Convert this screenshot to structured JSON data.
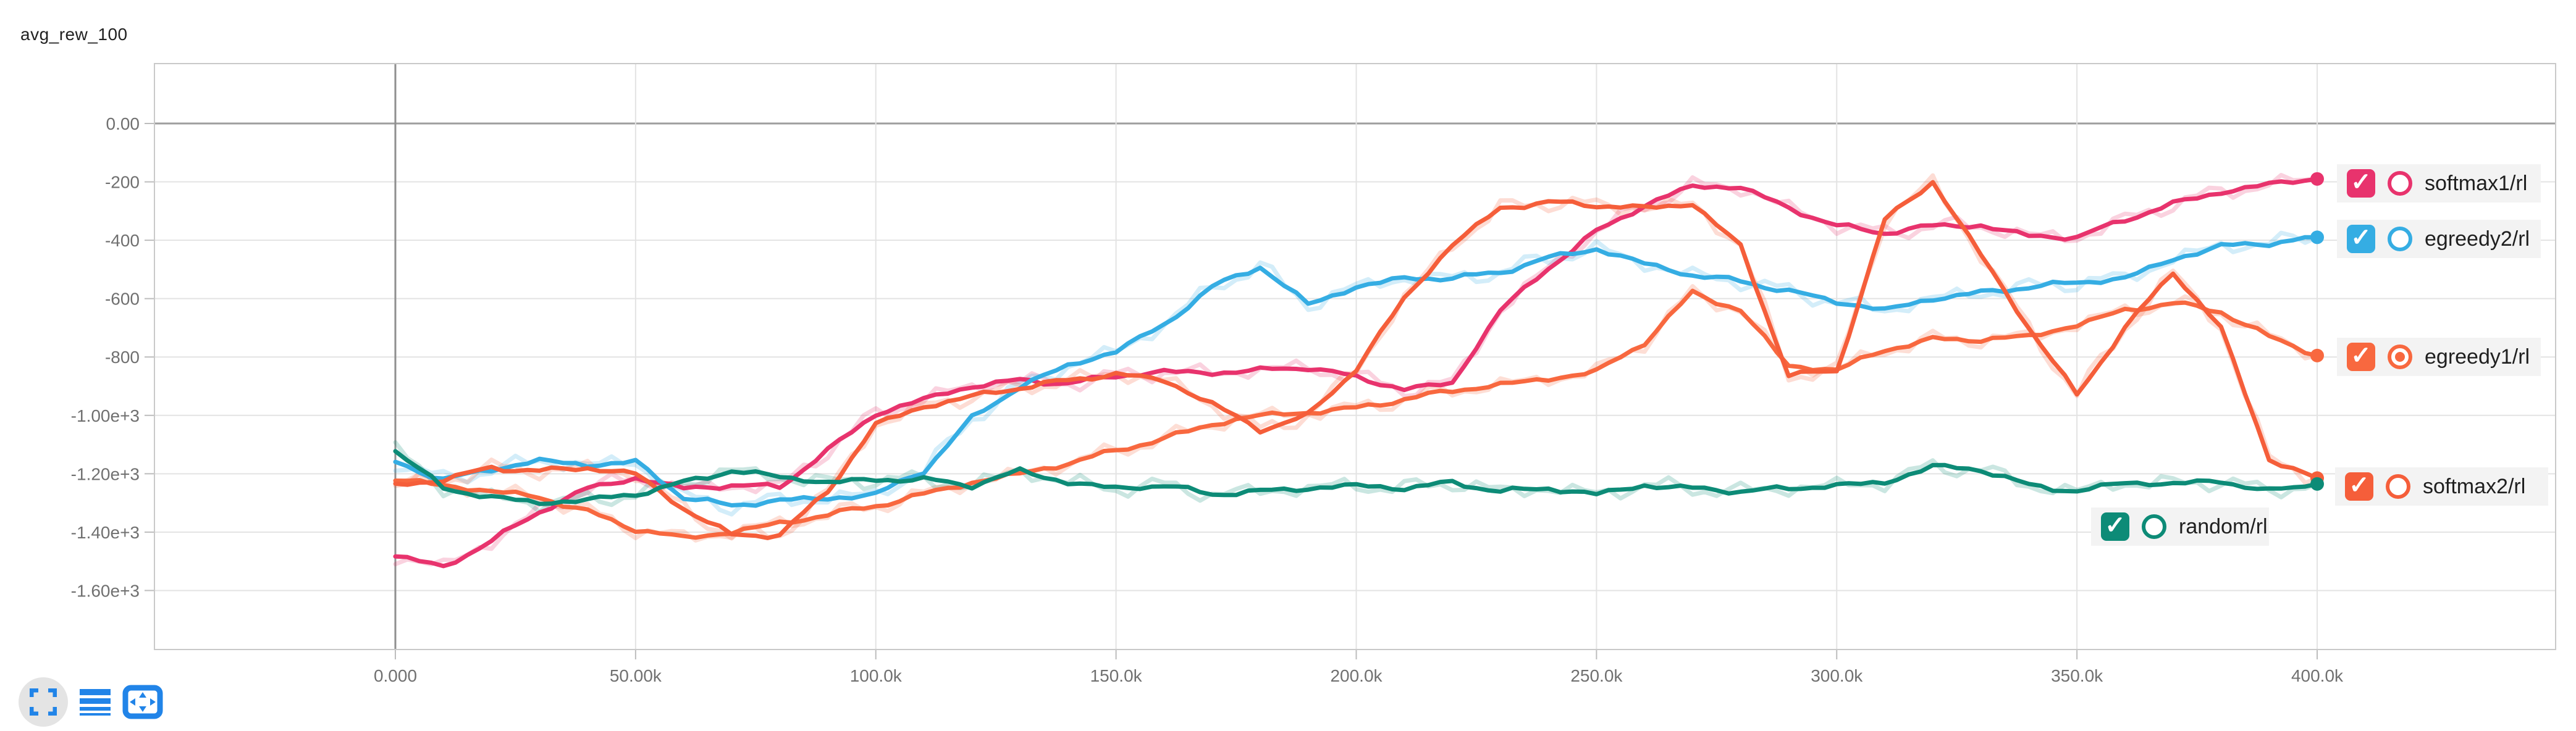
{
  "header": {
    "title": "avg_rew_100"
  },
  "colors": {
    "grid": "#e3e3e3",
    "plot_border": "#c9c9c9",
    "zero_line": "#9e9e9e",
    "origin_line": "#8f8f8f",
    "tick_text": "#707070",
    "legend_bg": "#f3f3f3",
    "toolbar_icon": "#2184e8",
    "series_pink": "#e8336d",
    "series_blue": "#35ade3",
    "series_orange1": "#f8683f",
    "series_orange2": "#f55e3a",
    "series_teal": "#0d8b77"
  },
  "toolbar": {
    "icons": [
      "fullscreen-icon",
      "runs-list-icon",
      "pan-icon"
    ]
  },
  "chart_data": {
    "type": "line",
    "title": "avg_rew_100",
    "xlabel": "",
    "ylabel": "",
    "xlim": [
      -50000,
      446000
    ],
    "ylim": [
      -1800,
      205
    ],
    "grid": true,
    "legend_position": "right-overlay",
    "x_ticks": {
      "values": [
        0,
        50000,
        100000,
        150000,
        200000,
        250000,
        300000,
        350000,
        400000
      ],
      "labels": [
        "0.000",
        "50.00k",
        "100.0k",
        "150.0k",
        "200.0k",
        "250.0k",
        "300.0k",
        "350.0k",
        "400.0k"
      ]
    },
    "y_ticks": {
      "values": [
        0,
        -200,
        -400,
        -600,
        -800,
        -1000,
        -1200,
        -1400,
        -1600
      ],
      "labels": [
        "0.00",
        "-200",
        "-400",
        "-600",
        "-800",
        "-1.00e+3",
        "-1.20e+3",
        "-1.40e+3",
        "-1.60e+3"
      ]
    },
    "x_step": 10000,
    "x": [
      0,
      10000,
      20000,
      30000,
      40000,
      50000,
      60000,
      70000,
      80000,
      90000,
      100000,
      110000,
      120000,
      130000,
      140000,
      150000,
      160000,
      170000,
      180000,
      190000,
      200000,
      210000,
      220000,
      230000,
      240000,
      250000,
      260000,
      270000,
      280000,
      290000,
      300000,
      310000,
      320000,
      330000,
      340000,
      350000,
      360000,
      370000,
      380000,
      390000,
      400000
    ],
    "series": [
      {
        "name": "softmax1/rl",
        "color": "#e8336d",
        "checked": true,
        "radio_filled": false,
        "end_value": -190,
        "values": [
          -1480,
          -1520,
          -1430,
          -1330,
          -1250,
          -1215,
          -1250,
          -1240,
          -1245,
          -1120,
          -995,
          -945,
          -900,
          -880,
          -890,
          -865,
          -850,
          -855,
          -845,
          -835,
          -870,
          -910,
          -890,
          -640,
          -495,
          -370,
          -280,
          -215,
          -218,
          -290,
          -350,
          -375,
          -350,
          -350,
          -385,
          -390,
          -330,
          -275,
          -235,
          -208,
          -190
        ]
      },
      {
        "name": "egreedy2/rl",
        "color": "#35ade3",
        "checked": true,
        "radio_filled": false,
        "end_value": -390,
        "values": [
          -1160,
          -1220,
          -1185,
          -1155,
          -1170,
          -1160,
          -1280,
          -1310,
          -1290,
          -1285,
          -1270,
          -1190,
          -1010,
          -900,
          -830,
          -780,
          -690,
          -560,
          -490,
          -620,
          -560,
          -530,
          -530,
          -510,
          -460,
          -430,
          -480,
          -520,
          -540,
          -575,
          -610,
          -640,
          -600,
          -580,
          -560,
          -545,
          -530,
          -465,
          -420,
          -410,
          -390
        ]
      },
      {
        "name": "egreedy1/rl",
        "color": "#f8683f",
        "checked": true,
        "radio_filled": true,
        "end_value": -795,
        "values": [
          -1220,
          -1240,
          -1260,
          -1280,
          -1330,
          -1390,
          -1420,
          -1400,
          -1370,
          -1340,
          -1310,
          -1270,
          -1230,
          -1200,
          -1165,
          -1120,
          -1080,
          -1030,
          -1000,
          -990,
          -975,
          -945,
          -915,
          -895,
          -875,
          -850,
          -750,
          -580,
          -640,
          -830,
          -845,
          -775,
          -740,
          -740,
          -730,
          -690,
          -640,
          -615,
          -645,
          -730,
          -795
        ]
      },
      {
        "name": "softmax2/rl",
        "color": "#f55e3a",
        "checked": true,
        "radio_filled": false,
        "end_value": -1215,
        "values": [
          -1240,
          -1220,
          -1180,
          -1190,
          -1180,
          -1200,
          -1320,
          -1410,
          -1410,
          -1260,
          -1030,
          -970,
          -935,
          -905,
          -880,
          -858,
          -880,
          -960,
          -1050,
          -1000,
          -840,
          -600,
          -415,
          -290,
          -270,
          -280,
          -290,
          -275,
          -420,
          -860,
          -850,
          -330,
          -200,
          -450,
          -700,
          -930,
          -700,
          -510,
          -700,
          -1150,
          -1215
        ]
      },
      {
        "name": "random/rl",
        "color": "#0d8b77",
        "checked": true,
        "radio_filled": false,
        "end_value": -1235,
        "values": [
          -1120,
          -1250,
          -1280,
          -1300,
          -1290,
          -1270,
          -1230,
          -1190,
          -1210,
          -1230,
          -1220,
          -1220,
          -1240,
          -1190,
          -1230,
          -1250,
          -1240,
          -1270,
          -1260,
          -1250,
          -1240,
          -1250,
          -1230,
          -1260,
          -1250,
          -1270,
          -1240,
          -1250,
          -1260,
          -1250,
          -1240,
          -1230,
          -1175,
          -1185,
          -1240,
          -1260,
          -1230,
          -1235,
          -1225,
          -1260,
          -1235
        ]
      }
    ]
  }
}
